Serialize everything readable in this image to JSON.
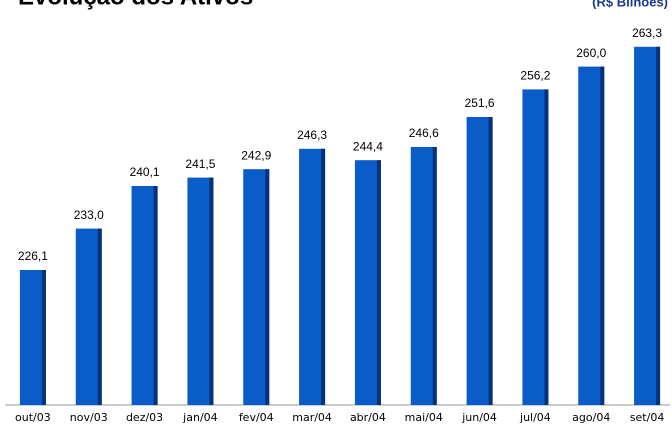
{
  "chart_data": {
    "type": "bar",
    "title": "Evolução dos Ativos",
    "subtitle": "(R$ Bilhões)",
    "categories": [
      "out/03",
      "nov/03",
      "dez/03",
      "jan/04",
      "fev/04",
      "mar/04",
      "abr/04",
      "mai/04",
      "jun/04",
      "jul/04",
      "ago/04",
      "set/04"
    ],
    "values": [
      226.1,
      233.0,
      240.1,
      241.5,
      242.9,
      246.3,
      244.4,
      246.6,
      251.6,
      256.2,
      260.0,
      263.3
    ],
    "value_labels": [
      "226,1",
      "233,0",
      "240,1",
      "241,5",
      "242,9",
      "246,3",
      "244,4",
      "246,6",
      "251,6",
      "256,2",
      "260,0",
      "263,3"
    ],
    "color": "#0a5cc8",
    "ylim": [
      203.6,
      271.1
    ]
  }
}
